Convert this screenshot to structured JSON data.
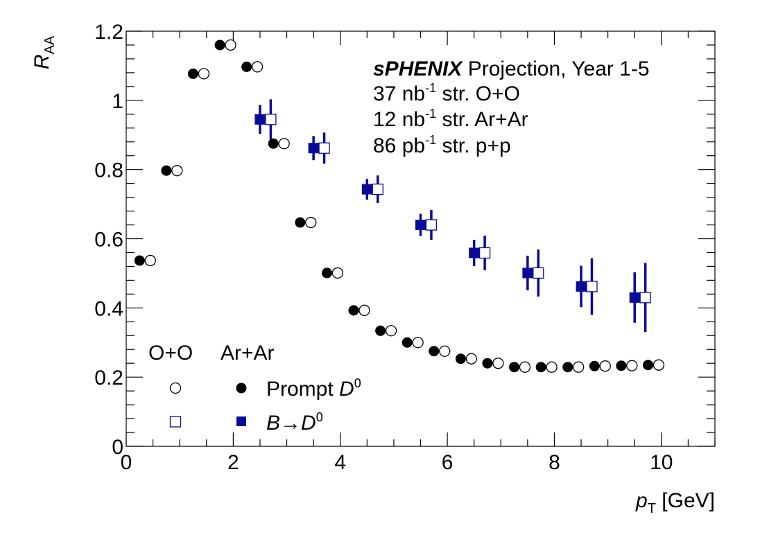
{
  "chart_data": {
    "type": "scatter",
    "xlabel": "p",
    "xlabel_sub": "T",
    "xlabel_unit": "[GeV]",
    "ylabel": "R",
    "ylabel_sub": "AA",
    "xlim": [
      0,
      11
    ],
    "ylim": [
      0,
      1.2
    ],
    "xticks": [
      0,
      2,
      4,
      6,
      8,
      10
    ],
    "yticks": [
      0,
      0.2,
      0.4,
      0.6,
      0.8,
      1,
      1.2
    ],
    "xtick_labels": [
      "0",
      "2",
      "4",
      "6",
      "8",
      "10"
    ],
    "ytick_labels": [
      "0",
      "0.2",
      "0.4",
      "0.6",
      "0.8",
      "1",
      "1.2"
    ],
    "grid": false,
    "annotation": {
      "experiment": "sPHENIX",
      "title_rest": " Projection, Year 1-5",
      "lines": [
        {
          "value": "37",
          "unit": " nb",
          "exp": "-1",
          "text": " str. O+O"
        },
        {
          "value": "12",
          "unit": " nb",
          "exp": "-1",
          "text": " str. Ar+Ar"
        },
        {
          "value": "86",
          "unit": " pb",
          "exp": "-1",
          "text": " str. p+p"
        }
      ]
    },
    "legend": {
      "placement": "bottom-left",
      "col_headers": [
        "O+O",
        "Ar+Ar"
      ],
      "entries": [
        {
          "label_pre": "Prompt ",
          "label_sym": "D",
          "label_sup": "0"
        },
        {
          "label_pre": "B→",
          "label_sym": "D",
          "label_sup": "0"
        }
      ]
    },
    "series": [
      {
        "name": "Prompt D0 Ar+Ar",
        "marker": "filled-circle",
        "color": "#000000",
        "x": [
          0.25,
          0.75,
          1.25,
          1.75,
          2.25,
          2.75,
          3.25,
          3.75,
          4.25,
          4.75,
          5.25,
          5.75,
          6.25,
          6.75,
          7.25,
          7.75,
          8.25,
          8.75,
          9.25,
          9.75
        ],
        "y": [
          0.537,
          0.797,
          1.077,
          1.16,
          1.097,
          0.875,
          0.647,
          0.501,
          0.393,
          0.334,
          0.3,
          0.275,
          0.253,
          0.24,
          0.229,
          0.229,
          0.229,
          0.232,
          0.233,
          0.235
        ],
        "err": [
          0,
          0,
          0,
          0,
          0,
          0,
          0,
          0,
          0,
          0,
          0,
          0,
          0,
          0,
          0,
          0,
          0,
          0,
          0,
          0
        ]
      },
      {
        "name": "Prompt D0 O+O",
        "marker": "open-circle",
        "color": "#000000",
        "x": [
          0.45,
          0.95,
          1.45,
          1.95,
          2.45,
          2.95,
          3.45,
          3.95,
          4.45,
          4.95,
          5.45,
          5.95,
          6.45,
          6.95,
          7.45,
          7.95,
          8.45,
          8.95,
          9.45,
          9.95
        ],
        "y": [
          0.537,
          0.797,
          1.077,
          1.16,
          1.097,
          0.875,
          0.647,
          0.501,
          0.393,
          0.334,
          0.3,
          0.275,
          0.253,
          0.24,
          0.229,
          0.229,
          0.229,
          0.232,
          0.233,
          0.235
        ],
        "err": [
          0,
          0,
          0,
          0,
          0,
          0,
          0,
          0,
          0,
          0,
          0,
          0,
          0,
          0,
          0,
          0,
          0,
          0,
          0,
          0.016
        ]
      },
      {
        "name": "B->D0 Ar+Ar",
        "marker": "filled-square",
        "color": "#0a0a99",
        "x": [
          2.5,
          3.5,
          4.5,
          5.5,
          6.5,
          7.5,
          8.5,
          9.5
        ],
        "y": [
          0.945,
          0.862,
          0.743,
          0.64,
          0.559,
          0.501,
          0.462,
          0.43
        ],
        "err": [
          0.042,
          0.035,
          0.03,
          0.032,
          0.038,
          0.05,
          0.06,
          0.073
        ]
      },
      {
        "name": "B->D0 O+O",
        "marker": "open-square",
        "color": "#0a0a99",
        "x": [
          2.7,
          3.7,
          4.7,
          5.7,
          6.7,
          7.7,
          8.7,
          9.7
        ],
        "y": [
          0.945,
          0.862,
          0.743,
          0.64,
          0.559,
          0.501,
          0.462,
          0.43
        ],
        "err": [
          0.058,
          0.045,
          0.04,
          0.043,
          0.05,
          0.068,
          0.082,
          0.1
        ]
      }
    ]
  }
}
